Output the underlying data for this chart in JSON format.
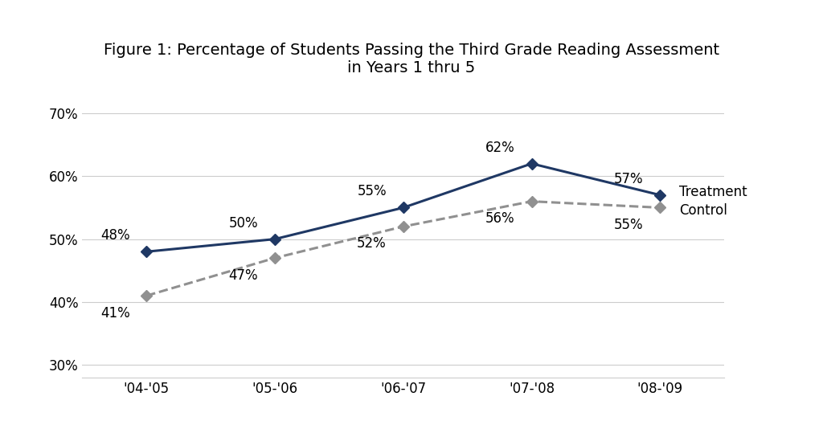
{
  "title": "Figure 1: Percentage of Students Passing the Third Grade Reading Assessment\nin Years 1 thru 5",
  "x_labels": [
    "'04-'05",
    "'05-'06",
    "'06-'07",
    "'07-'08",
    "'08-'09"
  ],
  "treatment_values": [
    0.48,
    0.5,
    0.55,
    0.62,
    0.57
  ],
  "control_values": [
    0.41,
    0.47,
    0.52,
    0.56,
    0.55
  ],
  "treatment_labels": [
    "48%",
    "50%",
    "55%",
    "62%",
    "57%"
  ],
  "control_labels": [
    "41%",
    "47%",
    "52%",
    "56%",
    "55%"
  ],
  "treatment_color": "#1F3864",
  "control_color": "#909090",
  "ylim": [
    0.28,
    0.73
  ],
  "yticks": [
    0.3,
    0.4,
    0.5,
    0.6,
    0.7
  ],
  "ytick_labels": [
    "30%",
    "40%",
    "50%",
    "60%",
    "70%"
  ],
  "background_color": "#ffffff",
  "title_fontsize": 14,
  "label_fontsize": 12,
  "tick_fontsize": 12,
  "legend_fontsize": 12
}
